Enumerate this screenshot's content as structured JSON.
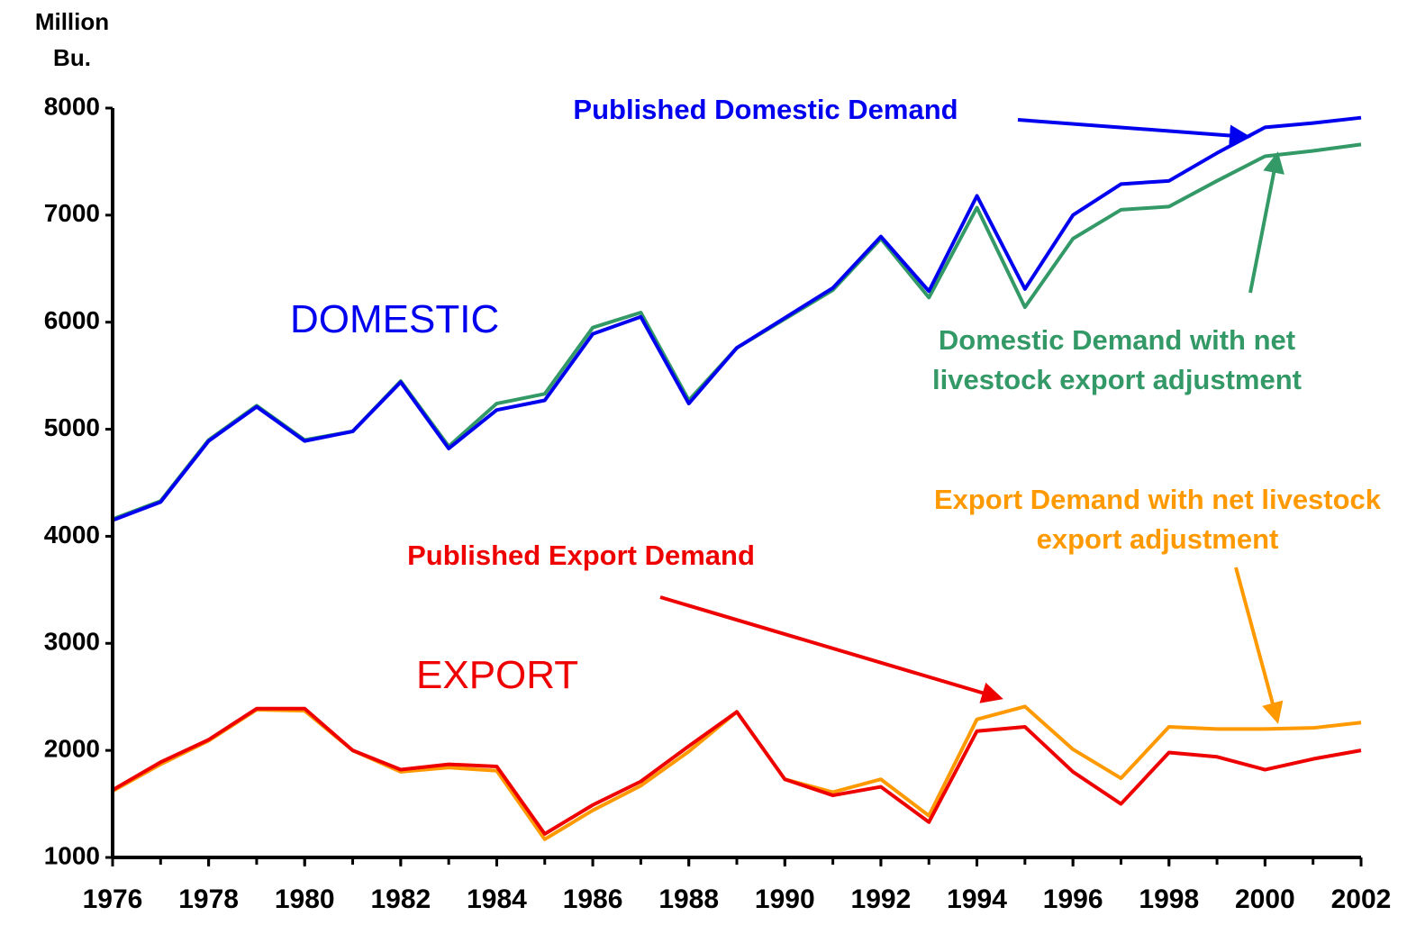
{
  "chart_data": {
    "type": "line",
    "y_label": "Million Bu.",
    "annotations": [
      "DOMESTIC",
      "EXPORT"
    ],
    "x": [
      1976,
      1977,
      1978,
      1979,
      1980,
      1981,
      1982,
      1983,
      1984,
      1985,
      1986,
      1987,
      1988,
      1989,
      1990,
      1991,
      1992,
      1993,
      1994,
      1995,
      1996,
      1997,
      1998,
      1999,
      2000,
      2001,
      2002
    ],
    "xlim": [
      1976,
      2002
    ],
    "xticks": [
      1976,
      1978,
      1980,
      1982,
      1984,
      1986,
      1988,
      1990,
      1992,
      1994,
      1996,
      1998,
      2000,
      2002
    ],
    "ylim": [
      1000,
      8000
    ],
    "yticks": [
      1000,
      2000,
      3000,
      4000,
      5000,
      6000,
      7000,
      8000
    ],
    "grid": false,
    "series": [
      {
        "name": "Published Domestic Demand",
        "color": "#0000ee",
        "values": [
          4150,
          4320,
          4890,
          5210,
          4890,
          4980,
          5440,
          4820,
          5180,
          5270,
          5890,
          6050,
          5240,
          5760,
          6040,
          6320,
          6800,
          6290,
          7180,
          6310,
          7000,
          7290,
          7320,
          7580,
          7820,
          7860,
          7910
        ]
      },
      {
        "name": "Domestic Demand with net livestock export adjustment",
        "color": "#339966",
        "values": [
          4160,
          4330,
          4900,
          5220,
          4900,
          4980,
          5450,
          4840,
          5240,
          5330,
          5950,
          6090,
          5270,
          5760,
          6030,
          6300,
          6780,
          6230,
          7070,
          6140,
          6780,
          7050,
          7080,
          7320,
          7550,
          7600,
          7660
        ]
      },
      {
        "name": "Published Export Demand",
        "color": "#ee0000",
        "values": [
          1630,
          1890,
          2100,
          2390,
          2390,
          2000,
          1820,
          1870,
          1850,
          1220,
          1490,
          1710,
          2040,
          2360,
          1730,
          1580,
          1660,
          1330,
          2180,
          2220,
          1800,
          1500,
          1980,
          1940,
          1820,
          1920,
          2000
        ]
      },
      {
        "name": "Export Demand with net livestock export adjustment",
        "color": "#ff9900",
        "values": [
          1620,
          1870,
          2090,
          2380,
          2370,
          2000,
          1800,
          1840,
          1810,
          1170,
          1440,
          1670,
          1990,
          2360,
          1730,
          1610,
          1730,
          1390,
          2290,
          2410,
          2010,
          1740,
          2220,
          2200,
          2200,
          2210,
          2260
        ]
      }
    ]
  }
}
